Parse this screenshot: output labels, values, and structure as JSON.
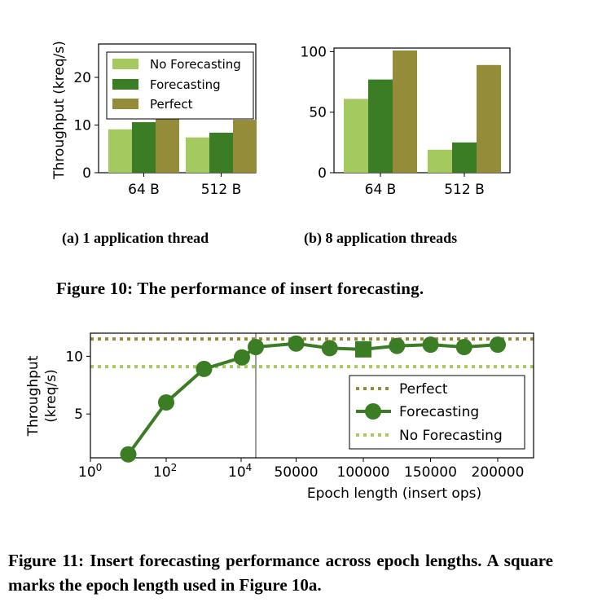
{
  "colors": {
    "no_forecasting": "#a3c95f",
    "forecasting": "#3b7d24",
    "perfect": "#958c39",
    "axis": "#000000"
  },
  "chart_data": [
    {
      "id": "fig10a",
      "type": "bar",
      "caption": "(a) 1 application thread",
      "ylabel": "Throughput (kreq/s)",
      "ylim": [
        0,
        27
      ],
      "yticks": [
        0,
        10,
        20
      ],
      "categories": [
        "64 B",
        "512 B"
      ],
      "series": [
        {
          "name": "No Forecasting",
          "values": [
            9.1,
            7.4
          ]
        },
        {
          "name": "Forecasting",
          "values": [
            10.6,
            8.4
          ]
        },
        {
          "name": "Perfect",
          "values": [
            11.5,
            11.1
          ]
        }
      ],
      "legend": "top-left"
    },
    {
      "id": "fig10b",
      "type": "bar",
      "caption": "(b) 8 application threads",
      "ylim": [
        0,
        103
      ],
      "yticks": [
        0,
        50,
        100
      ],
      "categories": [
        "64 B",
        "512 B"
      ],
      "series": [
        {
          "name": "No Forecasting",
          "values": [
            61,
            19
          ]
        },
        {
          "name": "Forecasting",
          "values": [
            77,
            25
          ]
        },
        {
          "name": "Perfect",
          "values": [
            101,
            89
          ]
        }
      ]
    },
    {
      "id": "fig11",
      "type": "line",
      "xlabel": "Epoch length (insert ops)",
      "ylabel_line1": "Throughput",
      "ylabel_line2": "(kreq/s)",
      "ylim": [
        1.2,
        12
      ],
      "yticks": [
        5,
        10
      ],
      "xticks_log": [
        "10^0",
        "10^2",
        "10^4"
      ],
      "xticks_linear": [
        "50000",
        "100000",
        "150000",
        "200000"
      ],
      "reference_lines": [
        {
          "name": "Perfect",
          "value": 11.5
        },
        {
          "name": "No Forecasting",
          "value": 9.1
        }
      ],
      "series": [
        {
          "name": "Forecasting",
          "x": [
            10,
            100,
            1000,
            10000,
            20000,
            50000,
            75000,
            100000,
            125000,
            150000,
            175000,
            200000
          ],
          "y": [
            1.5,
            6.0,
            8.9,
            9.9,
            10.8,
            11.1,
            10.7,
            10.6,
            10.9,
            11.0,
            10.8,
            11.0
          ],
          "square_marker_x": 100000
        }
      ],
      "legend": [
        "Perfect",
        "Forecasting",
        "No Forecasting"
      ],
      "legend_position": "center-right"
    }
  ],
  "labels": {
    "sup_0": "0",
    "sup_2": "2",
    "sup_4": "4",
    "base10": "10"
  },
  "captions": {
    "fig10": "Figure 10: The performance of insert forecasting.",
    "fig11": "Figure 11: Insert forecasting performance across epoch lengths. A square marks the epoch length used in Figure 10a."
  }
}
